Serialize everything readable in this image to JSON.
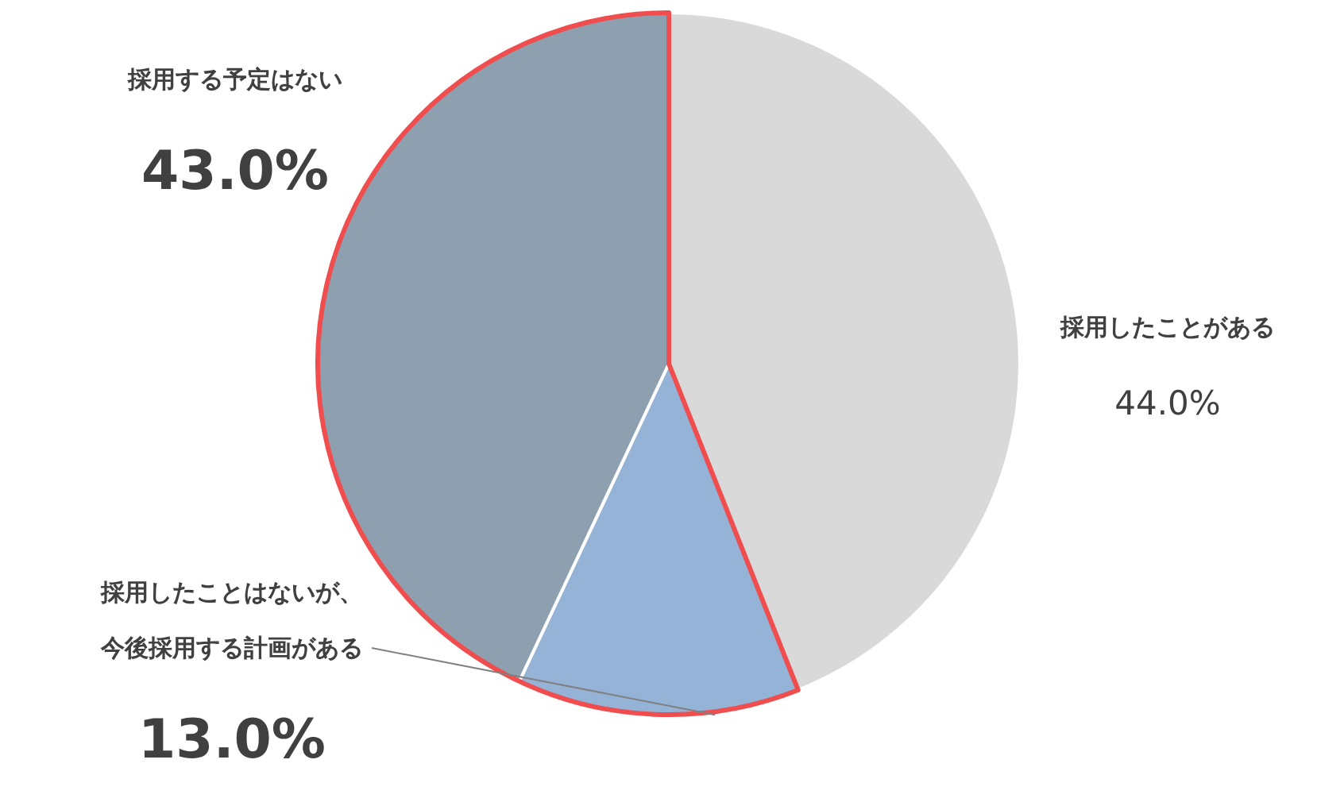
{
  "chart_data": {
    "type": "pie",
    "categories": [
      "採用したことがある",
      "採用したことはないが、今後採用する計画がある",
      "採用する予定はない"
    ],
    "values": [
      44,
      13,
      43
    ],
    "colors": [
      "#d9d9d9",
      "#95b3d7",
      "#8ea0af"
    ],
    "value_labels": [
      "44.0%",
      "13.0%",
      "43.0%"
    ],
    "legend": false
  }
}
